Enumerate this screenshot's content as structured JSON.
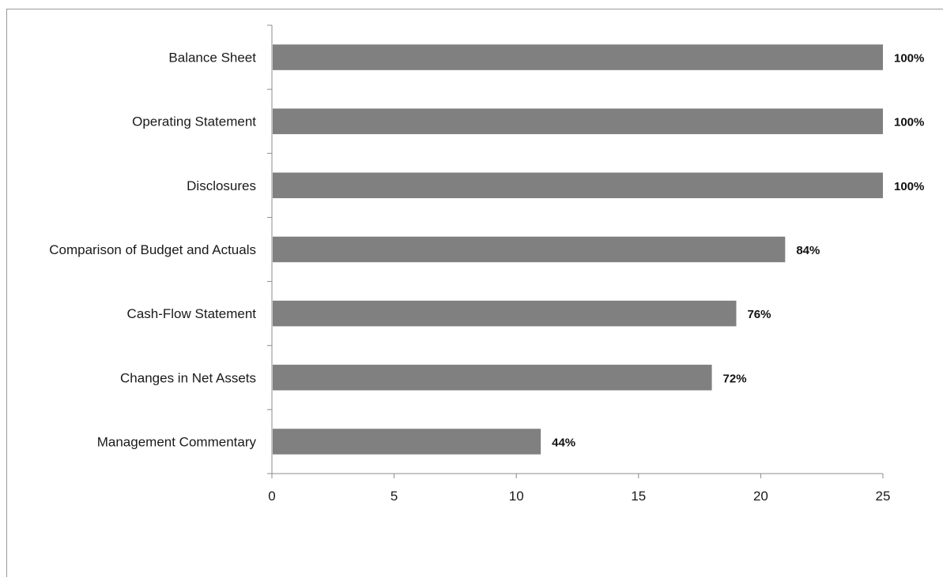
{
  "chart_data": {
    "type": "bar",
    "orientation": "horizontal",
    "title": "",
    "xlabel": "",
    "ylabel": "",
    "categories": [
      "Balance Sheet",
      "Operating Statement",
      "Disclosures",
      "Comparison of Budget and Actuals",
      "Cash-Flow Statement",
      "Changes in Net Assets",
      "Management Commentary"
    ],
    "values": [
      25,
      25,
      25,
      21,
      19,
      18,
      11
    ],
    "data_labels": [
      "100%",
      "100%",
      "100%",
      "84%",
      "76%",
      "72%",
      "44%"
    ],
    "xlim": [
      0,
      25
    ],
    "x_ticks": [
      "0",
      "5",
      "10",
      "15",
      "20",
      "25"
    ],
    "grid": false,
    "legend": "none",
    "bar_color": "#808080"
  }
}
